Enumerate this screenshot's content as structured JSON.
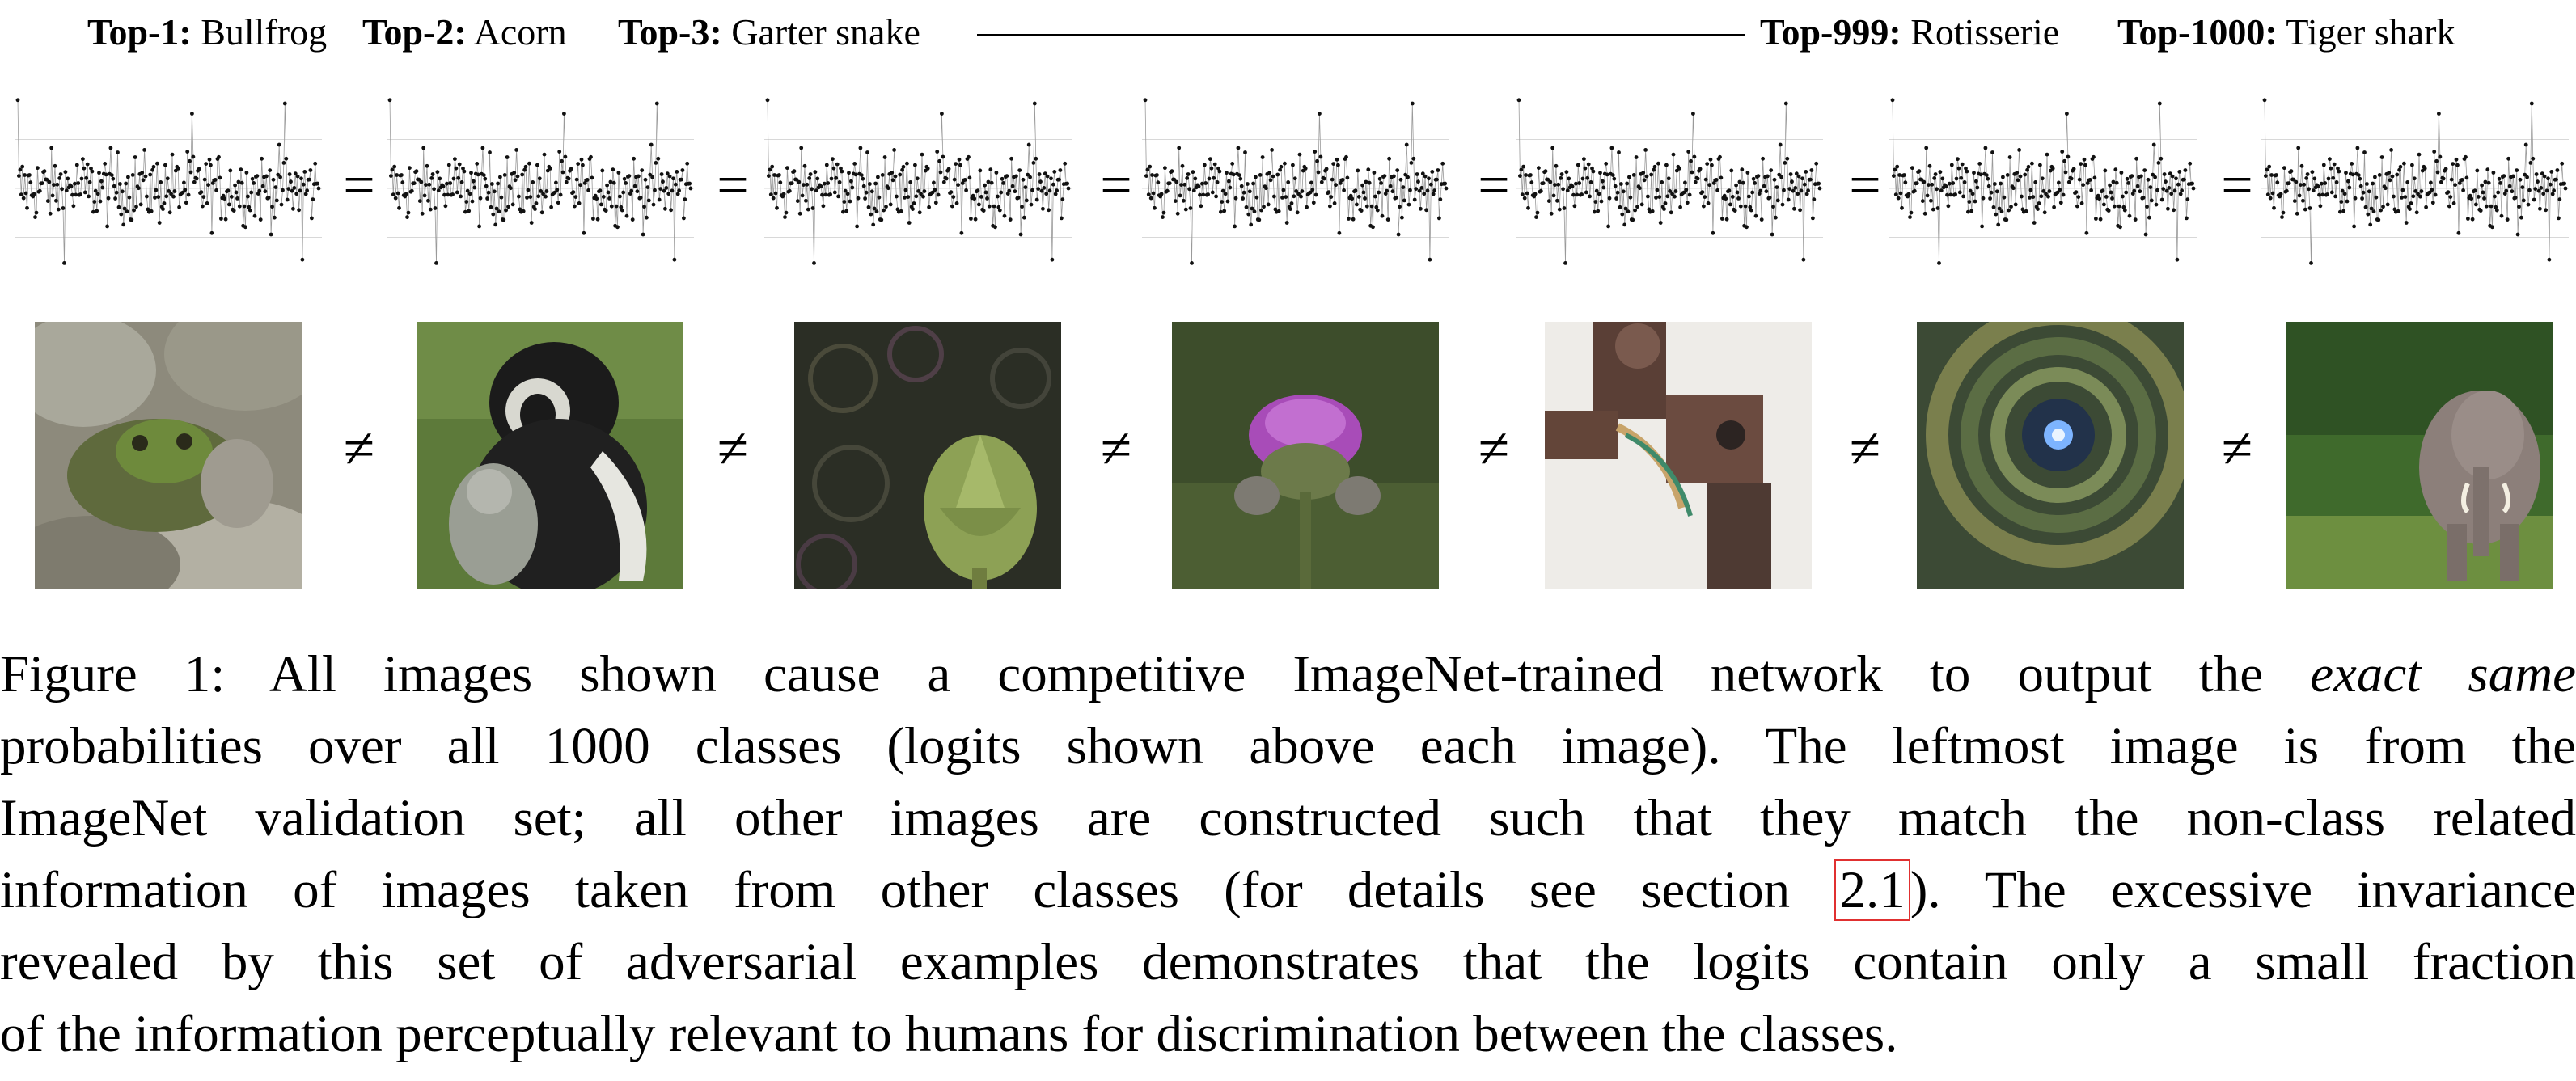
{
  "header": {
    "items": [
      {
        "rank": "Top-1:",
        "name": "Bullfrog"
      },
      {
        "rank": "Top-2:",
        "name": "Acorn"
      },
      {
        "rank": "Top-3:",
        "name": "Garter snake"
      },
      {
        "rank": "Top-999:",
        "name": "Rotisserie"
      },
      {
        "rank": "Top-1000:",
        "name": "Tiger shark"
      }
    ]
  },
  "relations": {
    "equal_symbol": "=",
    "not_equal_symbol": "≠"
  },
  "images": [
    {
      "subject": "bullfrog"
    },
    {
      "subject": "colobus monkey"
    },
    {
      "subject": "artichoke"
    },
    {
      "subject": "thistle"
    },
    {
      "subject": "machine part"
    },
    {
      "subject": "spiral staircase"
    },
    {
      "subject": "elephant"
    }
  ],
  "caption": {
    "label": "Figure 1:",
    "line1_a": "All images shown cause a competitive ImageNet-trained network to output the",
    "line1_em": "exact same",
    "line2": "probabilities over all 1000 classes (logits shown above each image). The leftmost image is from the",
    "line3": "ImageNet validation set; all other images are constructed such that they match the non-class related",
    "line4_a": "information of images taken from other classes (for details see section",
    "line4_ref": "2.1",
    "line4_b": "). The excessive invariance",
    "line5": "revealed by this set of adversarial examples demonstrates that the logits contain only a small fraction",
    "line6": "of the information perceptually relevant to humans for discrimination between the classes."
  }
}
